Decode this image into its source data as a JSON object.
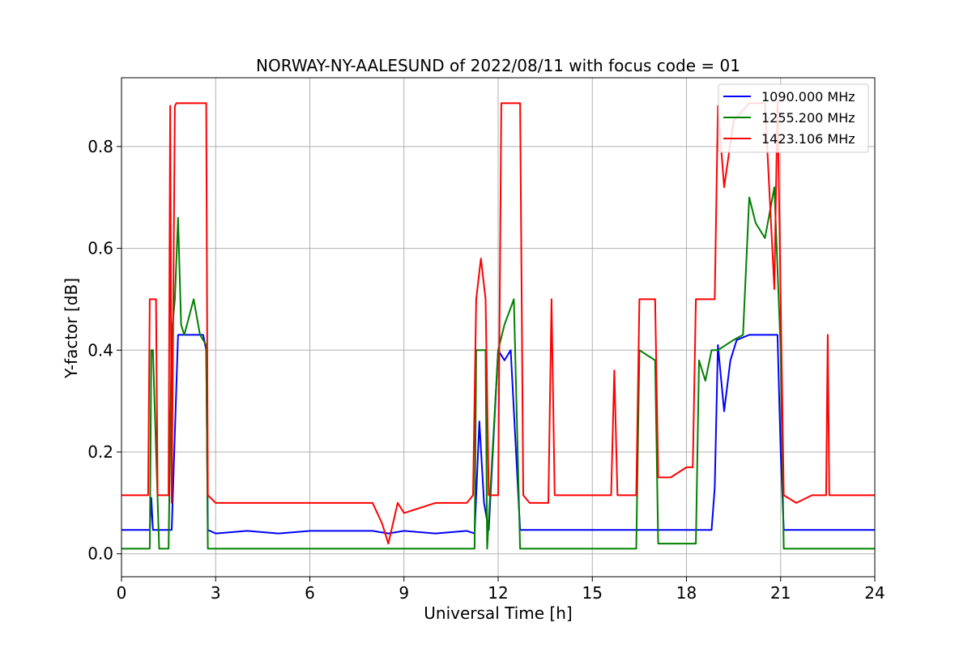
{
  "chart_data": {
    "type": "line",
    "title": "NORWAY-NY-AALESUND of 2022/08/11 with focus code = 01",
    "xlabel": "Universal Time [h]",
    "ylabel": "Y-factor [dB]",
    "xlim": [
      0,
      24
    ],
    "ylim": [
      -0.045,
      0.935
    ],
    "xticks": [
      0,
      3,
      6,
      9,
      12,
      15,
      18,
      21,
      24
    ],
    "xtick_labels": [
      "0",
      "3",
      "6",
      "9",
      "12",
      "15",
      "18",
      "21",
      "24"
    ],
    "yticks": [
      0.0,
      0.2,
      0.4,
      0.6,
      0.8
    ],
    "ytick_labels": [
      "0.0",
      "0.2",
      "0.4",
      "0.6",
      "0.8"
    ],
    "grid": true,
    "legend_position": "top-right",
    "series": [
      {
        "name": "1090.000 MHz",
        "color": "#0000ff",
        "x": [
          0,
          0.9,
          0.95,
          1.0,
          1.3,
          1.6,
          1.8,
          2.0,
          2.3,
          2.6,
          2.7,
          2.75,
          3.0,
          4.0,
          5.0,
          6.0,
          7.0,
          8.0,
          8.5,
          9.0,
          10.0,
          11.0,
          11.25,
          11.4,
          11.55,
          11.7,
          12.0,
          12.2,
          12.4,
          12.7,
          13.0,
          14.0,
          15.0,
          16.0,
          17.0,
          18.0,
          18.8,
          18.9,
          19.0,
          19.2,
          19.4,
          19.6,
          20.0,
          20.5,
          20.9,
          21.0,
          21.1,
          21.5,
          22.0,
          22.5,
          23.0,
          24.0
        ],
        "values": [
          0.047,
          0.047,
          0.11,
          0.047,
          0.047,
          0.047,
          0.43,
          0.43,
          0.43,
          0.43,
          0.4,
          0.047,
          0.04,
          0.045,
          0.04,
          0.045,
          0.045,
          0.045,
          0.04,
          0.045,
          0.04,
          0.045,
          0.04,
          0.26,
          0.1,
          0.047,
          0.4,
          0.38,
          0.4,
          0.047,
          0.047,
          0.047,
          0.047,
          0.047,
          0.047,
          0.047,
          0.047,
          0.13,
          0.41,
          0.28,
          0.38,
          0.42,
          0.43,
          0.43,
          0.43,
          0.2,
          0.047,
          0.047,
          0.047,
          0.047,
          0.047,
          0.047
        ]
      },
      {
        "name": "1255.200 MHz",
        "color": "#008000",
        "x": [
          0,
          0.9,
          0.95,
          1.0,
          1.2,
          1.5,
          1.6,
          1.7,
          1.8,
          1.9,
          2.0,
          2.3,
          2.5,
          2.7,
          2.75,
          3.0,
          5.0,
          8.0,
          11.0,
          11.25,
          11.3,
          11.6,
          11.65,
          12.0,
          12.2,
          12.5,
          12.7,
          13.0,
          14.0,
          15.0,
          15.8,
          16.0,
          16.4,
          16.5,
          17.0,
          17.1,
          17.5,
          18.0,
          18.3,
          18.4,
          18.6,
          18.8,
          19.0,
          19.5,
          19.8,
          20.0,
          20.2,
          20.5,
          20.8,
          21.0,
          21.1,
          21.5,
          22.0,
          23.0,
          24.0
        ],
        "values": [
          0.01,
          0.01,
          0.4,
          0.4,
          0.01,
          0.01,
          0.43,
          0.5,
          0.66,
          0.45,
          0.43,
          0.5,
          0.43,
          0.41,
          0.01,
          0.01,
          0.01,
          0.01,
          0.01,
          0.01,
          0.4,
          0.4,
          0.01,
          0.4,
          0.45,
          0.5,
          0.01,
          0.01,
          0.01,
          0.01,
          0.01,
          0.01,
          0.01,
          0.4,
          0.38,
          0.02,
          0.02,
          0.02,
          0.02,
          0.38,
          0.34,
          0.4,
          0.4,
          0.42,
          0.43,
          0.7,
          0.65,
          0.62,
          0.72,
          0.4,
          0.01,
          0.01,
          0.01,
          0.01,
          0.01
        ]
      },
      {
        "name": "1423.106 MHz",
        "color": "#ff0000",
        "x": [
          0,
          0.85,
          0.9,
          1.1,
          1.15,
          1.5,
          1.55,
          1.6,
          1.7,
          1.75,
          2.0,
          2.5,
          2.7,
          2.75,
          3.0,
          4.0,
          5.0,
          6.0,
          7.0,
          8.0,
          8.3,
          8.5,
          8.8,
          9.0,
          10.0,
          11.0,
          11.2,
          11.3,
          11.45,
          11.6,
          11.7,
          12.0,
          12.1,
          12.4,
          12.7,
          12.8,
          13.0,
          13.6,
          13.7,
          13.8,
          14.0,
          15.0,
          15.6,
          15.7,
          15.8,
          16.0,
          16.4,
          16.5,
          17.0,
          17.1,
          17.5,
          18.0,
          18.2,
          18.3,
          18.9,
          19.0,
          19.2,
          19.5,
          20.0,
          20.5,
          20.8,
          20.9,
          21.0,
          21.1,
          21.5,
          22.0,
          22.45,
          22.5,
          22.55,
          23.0,
          24.0
        ],
        "values": [
          0.115,
          0.115,
          0.5,
          0.5,
          0.115,
          0.115,
          0.88,
          0.1,
          0.88,
          0.885,
          0.885,
          0.885,
          0.885,
          0.115,
          0.1,
          0.1,
          0.1,
          0.1,
          0.1,
          0.1,
          0.06,
          0.02,
          0.1,
          0.08,
          0.1,
          0.1,
          0.115,
          0.5,
          0.58,
          0.5,
          0.115,
          0.115,
          0.885,
          0.885,
          0.885,
          0.115,
          0.1,
          0.1,
          0.5,
          0.115,
          0.115,
          0.115,
          0.115,
          0.36,
          0.115,
          0.115,
          0.115,
          0.5,
          0.5,
          0.15,
          0.15,
          0.17,
          0.17,
          0.5,
          0.5,
          0.88,
          0.72,
          0.85,
          0.885,
          0.885,
          0.52,
          0.89,
          0.5,
          0.115,
          0.1,
          0.115,
          0.115,
          0.43,
          0.115,
          0.115,
          0.115
        ]
      }
    ]
  }
}
